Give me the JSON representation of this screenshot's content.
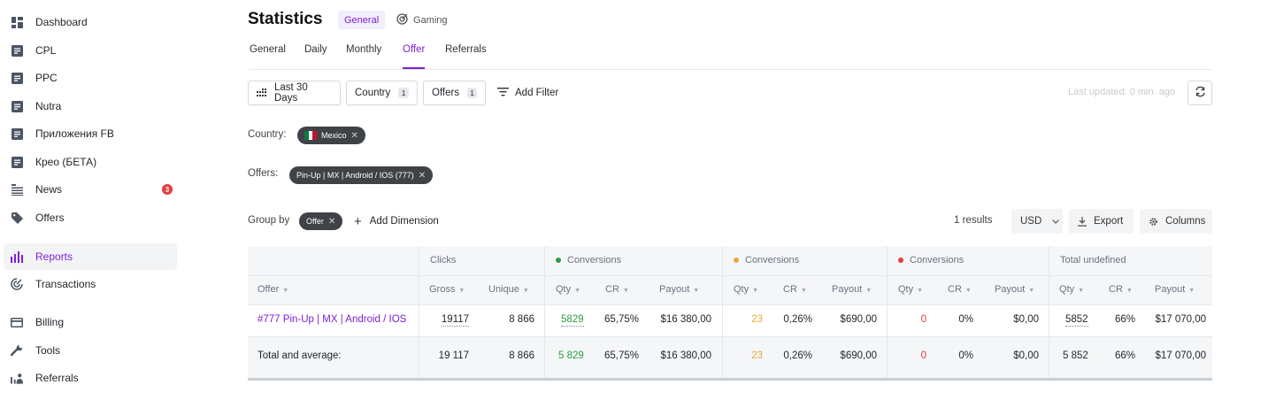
{
  "sidebar": {
    "items": [
      {
        "label": "Dashboard",
        "icon": "dashboard-icon"
      },
      {
        "label": "CPL",
        "icon": "document-icon"
      },
      {
        "label": "PPC",
        "icon": "document-icon"
      },
      {
        "label": "Nutra",
        "icon": "document-icon"
      },
      {
        "label": "Приложения FB",
        "icon": "document-icon"
      },
      {
        "label": "Крео (БЕТА)",
        "icon": "document-icon"
      },
      {
        "label": "News",
        "icon": "list-icon",
        "badge": "3"
      },
      {
        "label": "Offers",
        "icon": "tag-icon"
      },
      {
        "label": "Reports",
        "icon": "bar-chart-icon",
        "active": true
      },
      {
        "label": "Transactions",
        "icon": "radar-icon"
      },
      {
        "label": "Billing",
        "icon": "card-icon"
      },
      {
        "label": "Tools",
        "icon": "wrench-icon"
      },
      {
        "label": "Referrals",
        "icon": "referrals-icon"
      }
    ]
  },
  "header": {
    "title": "Statistics",
    "pill_general": "General",
    "pill_gaming": "Gaming"
  },
  "tabs": [
    "General",
    "Daily",
    "Monthly",
    "Offer",
    "Referrals"
  ],
  "active_tab": "Offer",
  "filters": {
    "date": "Last 30 Days",
    "country": "Country",
    "country_count": "1",
    "offers": "Offers",
    "offers_count": "1",
    "add_filter": "Add Filter",
    "last_updated": "Last updated: 0 min. ago"
  },
  "applied": {
    "country_label": "Country:",
    "country_value": "Mexico",
    "offers_label": "Offers:",
    "offers_value": "Pin-Up | MX | Android / IOS (777)"
  },
  "grouping": {
    "label": "Group by",
    "chip": "Offer",
    "add_dimension": "Add Dimension",
    "results": "1 results",
    "currency": "USD",
    "export": "Export",
    "columns": "Columns"
  },
  "table": {
    "groups": {
      "clicks": "Clicks",
      "conv_green": "Conversions",
      "conv_orange": "Conversions",
      "conv_red": "Conversions",
      "total": "Total undefined"
    },
    "headers": {
      "offer": "Offer",
      "gross": "Gross",
      "unique": "Unique",
      "qty": "Qty",
      "cr": "CR",
      "payout": "Payout"
    },
    "row": {
      "offer": "#777 Pin-Up | MX | Android / IOS",
      "gross": "19117",
      "unique": "8 866",
      "g_qty": "5829",
      "g_cr": "65,75%",
      "g_payout": "$16 380,00",
      "o_qty": "23",
      "o_cr": "0,26%",
      "o_payout": "$690,00",
      "r_qty": "0",
      "r_cr": "0%",
      "r_payout": "$0,00",
      "t_qty": "5852",
      "t_cr": "66%",
      "t_payout": "$17 070,00"
    },
    "total": {
      "label": "Total and average:",
      "gross": "19 117",
      "unique": "8 866",
      "g_qty": "5 829",
      "g_cr": "65,75%",
      "g_payout": "$16 380,00",
      "o_qty": "23",
      "o_cr": "0,26%",
      "o_payout": "$690,00",
      "r_qty": "0",
      "r_cr": "0%",
      "r_payout": "$0,00",
      "t_qty": "5 852",
      "t_cr": "66%",
      "t_payout": "$17 070,00"
    }
  },
  "colors": {
    "accent": "#7c1fd6",
    "green": "#2f9e44",
    "orange": "#e8a93a",
    "red": "#e53e3e"
  }
}
